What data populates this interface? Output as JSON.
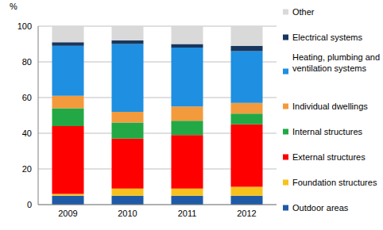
{
  "chart_data": {
    "type": "bar",
    "stacked": true,
    "ylabel": "%",
    "categories": [
      "2009",
      "2010",
      "2011",
      "2012"
    ],
    "ylim": [
      0,
      100
    ],
    "yticks": [
      0,
      20,
      40,
      60,
      80,
      100
    ],
    "grid": true,
    "legend": "right",
    "series": [
      {
        "name": "Outdoor areas",
        "color": "#1f5aa6",
        "values": [
          5,
          5,
          5,
          5
        ]
      },
      {
        "name": "Foundation structures",
        "color": "#f7c21b",
        "values": [
          1,
          4,
          4,
          5
        ]
      },
      {
        "name": "External structures",
        "color": "#ff0000",
        "values": [
          38,
          28,
          30,
          35
        ]
      },
      {
        "name": "Internal structures",
        "color": "#22a845",
        "values": [
          10,
          9,
          8,
          6
        ]
      },
      {
        "name": "Individual dwellings",
        "color": "#f39a3c",
        "values": [
          7,
          6,
          8,
          6
        ]
      },
      {
        "name": "Heating, plumbing and ventilation systems",
        "color": "#1e8fe1",
        "values": [
          28,
          38,
          33,
          29
        ]
      },
      {
        "name": "Electrical systems",
        "color": "#17375e",
        "values": [
          2,
          2,
          2,
          3
        ]
      },
      {
        "name": "Other",
        "color": "#d9d9d9",
        "values": [
          9,
          8,
          10,
          11
        ]
      }
    ]
  }
}
